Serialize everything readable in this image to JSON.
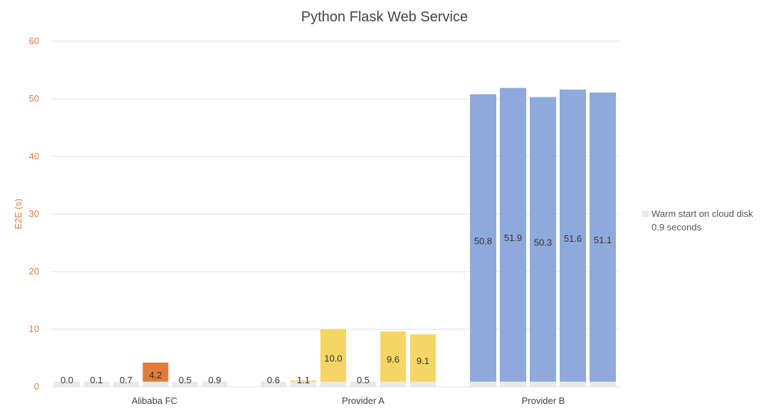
{
  "chart_data": {
    "type": "bar",
    "title": "Python Flask Web Service",
    "xlabel": "",
    "ylabel": "E2E (s)",
    "ylim": [
      0,
      60
    ],
    "yticks": [
      0,
      10,
      20,
      30,
      40,
      50,
      60
    ],
    "grid": true,
    "legend_position": "right",
    "groups": [
      {
        "label": "Alibaba FC",
        "color": "#E07B39",
        "values": [
          0.0,
          0.1,
          0.7,
          4.2,
          0.5,
          0.9
        ],
        "value_labels": [
          "0.0",
          "0.1",
          "0.7",
          "4.2",
          "0.5",
          "0.9"
        ]
      },
      {
        "label": "Provider A",
        "color": "#F5D565",
        "values": [
          0.6,
          1.1,
          10.0,
          0.5,
          9.6,
          9.1
        ],
        "value_labels": [
          "0.6",
          "1.1",
          "10.0",
          "0.5",
          "9.6",
          "9.1"
        ]
      },
      {
        "label": "Provider B",
        "color": "#8EA9DB",
        "values": [
          50.8,
          51.9,
          50.3,
          51.6,
          51.1
        ],
        "value_labels": [
          "50.8",
          "51.9",
          "50.3",
          "51.6",
          "51.1"
        ]
      }
    ],
    "baseline": {
      "name": "Warm start on cloud disk",
      "value": 0.9,
      "color": "#E7E9EC",
      "label_line1": "Warm start on cloud disk",
      "label_line2": "0.9 seconds"
    }
  },
  "colors": {
    "axis_text": "#E07B39",
    "grid": "#E0E0E0",
    "title": "#444444"
  }
}
